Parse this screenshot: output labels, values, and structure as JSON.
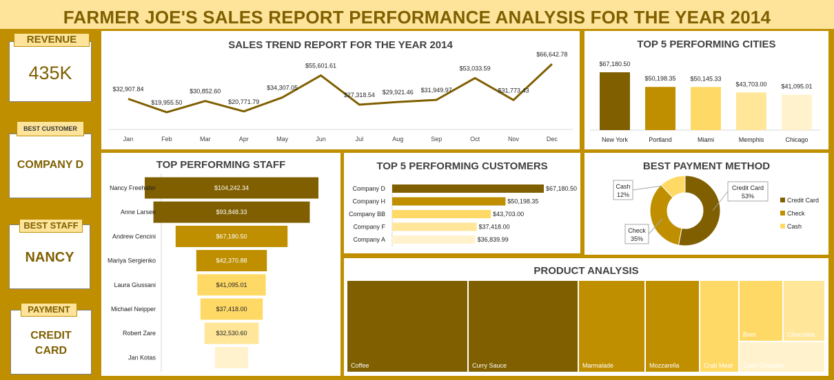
{
  "header": {
    "title": "FARMER JOE'S SALES REPORT PERFORMANCE ANALYSIS FOR THE YEAR 2014"
  },
  "kpis": {
    "revenue": {
      "label": "REVENUE",
      "value": "435K"
    },
    "best_customer": {
      "label": "BEST CUSTOMER",
      "value": "COMPANY D"
    },
    "best_staff": {
      "label": "BEST STAFF",
      "value": "NANCY"
    },
    "payment": {
      "label": "PAYMENT",
      "value_line1": "CREDIT",
      "value_line2": "CARD"
    }
  },
  "colors": {
    "dark": "#7f5f00",
    "mid": "#bf8f00",
    "gold": "#ffd966",
    "light": "#ffe699",
    "pale": "#fff2cc"
  },
  "chart_data": [
    {
      "type": "line",
      "title": "SALES TREND REPORT FOR THE YEAR 2014",
      "categories": [
        "Jan",
        "Feb",
        "Mar",
        "Apr",
        "May",
        "Jun",
        "Jul",
        "Aug",
        "Sep",
        "Oct",
        "Nov",
        "Dec"
      ],
      "values": [
        32907.84,
        19955.5,
        30852.6,
        20771.79,
        34307.05,
        55601.61,
        27318.54,
        29921.46,
        31949.97,
        53033.59,
        31773.43,
        66642.78
      ],
      "labels": [
        "$32,907.84",
        "$19,955.50",
        "$30,852.60",
        "$20,771.79",
        "$34,307.05",
        "$55,601.61",
        "$27,318.54",
        "$29,921.46",
        "$31,949.97",
        "$53,033.59",
        "$31,773.43",
        "$66,642.78"
      ]
    },
    {
      "type": "bar",
      "title": "TOP 5 PERFORMING CITIES",
      "categories": [
        "New York",
        "Portland",
        "Miami",
        "Memphis",
        "Chicago"
      ],
      "values": [
        67180.5,
        50198.35,
        50145.33,
        43703.0,
        41095.01
      ],
      "labels": [
        "$67,180.50",
        "$50,198.35",
        "$50,145.33",
        "$43,703.00",
        "$41,095.01"
      ]
    },
    {
      "type": "bar",
      "title": "TOP PERFORMING STAFF",
      "categories": [
        "Nancy Freehafer",
        "Anne Larsen",
        "Andrew Cencini",
        "Mariya Sergienko",
        "Laura Giussani",
        "Michael Neipper",
        "Robert Zare",
        "Jan Kotas"
      ],
      "values": [
        104242.34,
        93848.33,
        67180.5,
        42370.88,
        41095.01,
        37418.0,
        32530.6,
        20000
      ],
      "labels": [
        "$104,242.34",
        "$93,848.33",
        "$67,180.50",
        "$42,370.88",
        "$41,095.01",
        "$37,418.00",
        "$32,530.60",
        ""
      ]
    },
    {
      "type": "bar",
      "title": "TOP 5 PERFORMING CUSTOMERS",
      "categories": [
        "Company D",
        "Company H",
        "Company BB",
        "Company F",
        "Company A"
      ],
      "values": [
        67180.5,
        50198.35,
        43703.0,
        37418.0,
        36839.99
      ],
      "labels": [
        "$67,180.50",
        "$50,198.35",
        "$43,703.00",
        "$37,418.00",
        "$36,839.99"
      ]
    },
    {
      "type": "pie",
      "title": "BEST PAYMENT METHOD",
      "categories": [
        "Credit Card",
        "Check",
        "Cash"
      ],
      "values": [
        53,
        35,
        12
      ],
      "labels": [
        "53%",
        "35%",
        "12%"
      ]
    },
    {
      "type": "heatmap",
      "title": "PRODUCT ANALYSIS",
      "categories": [
        "Coffee",
        "Curry Sauce",
        "Marmalade",
        "Mozzarella",
        "Crab Meat",
        "Beer",
        "Chocolate",
        "Clam Chowder"
      ]
    }
  ]
}
